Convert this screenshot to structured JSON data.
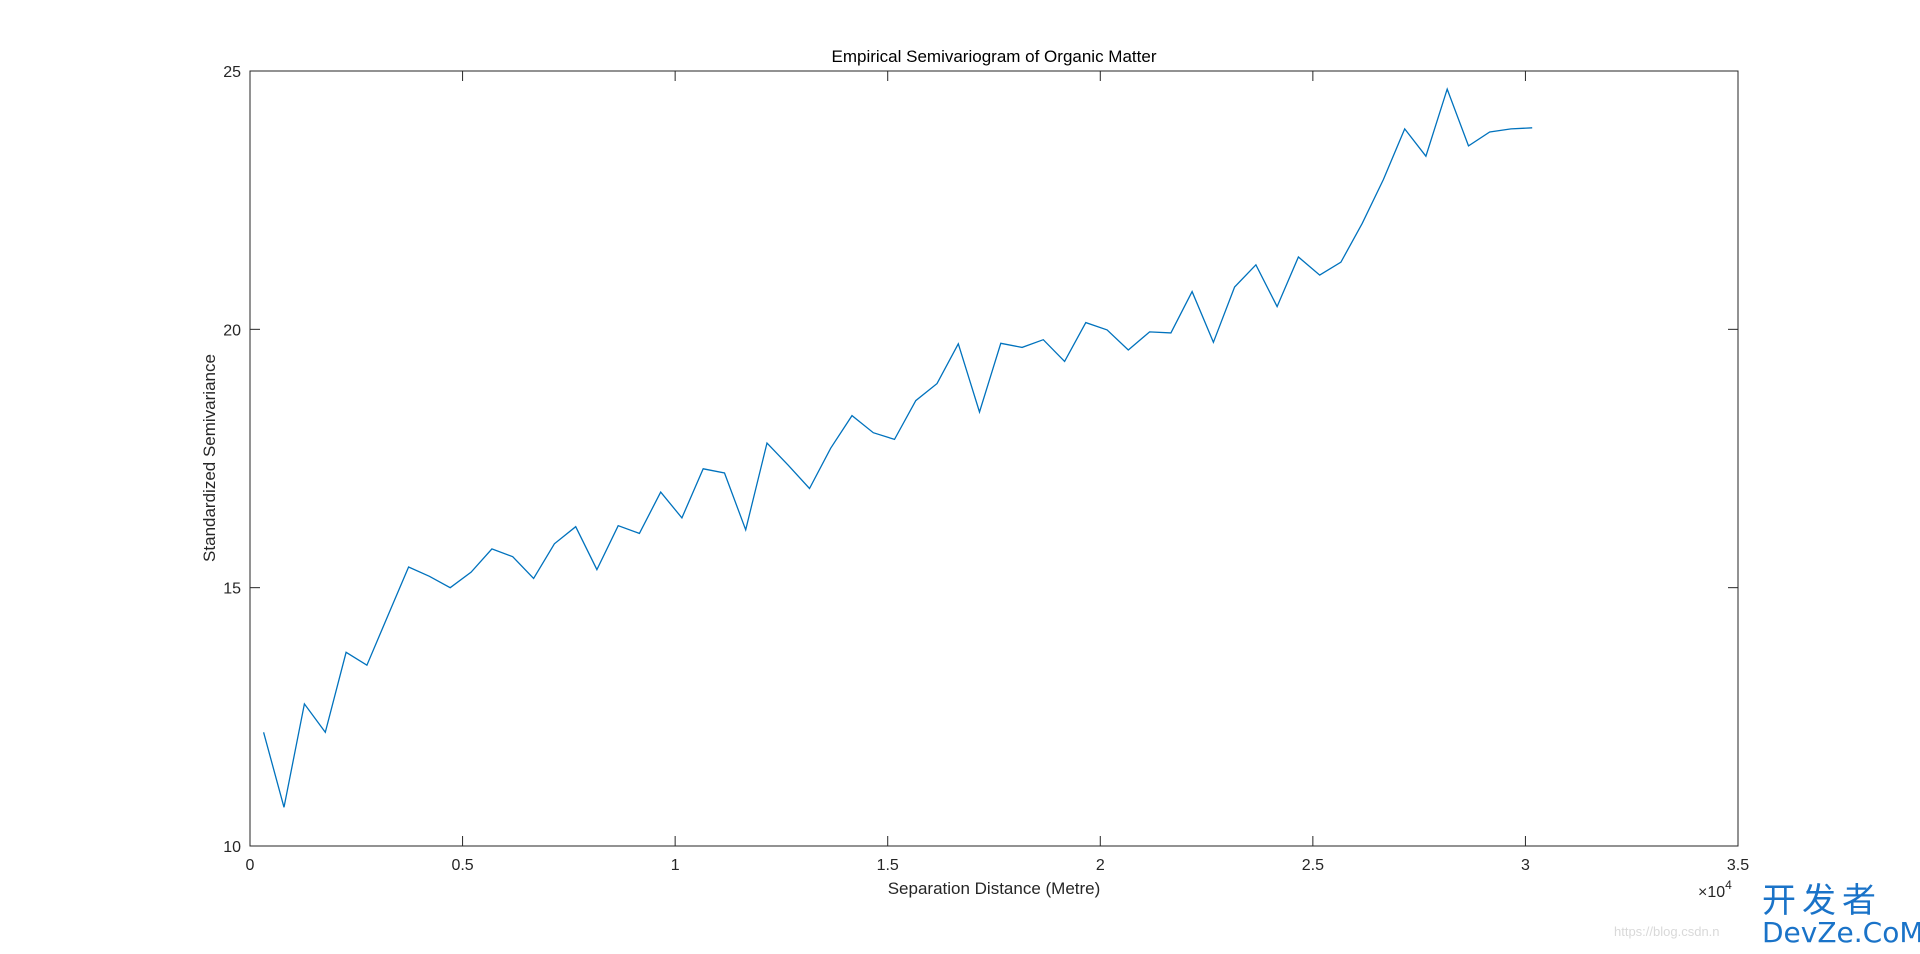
{
  "chart_data": {
    "type": "line",
    "title": "Empirical Semivariogram of Organic Matter",
    "xlabel": "Separation Distance (Metre)",
    "ylabel": "Standardized Semivariance",
    "x_exponent_label": "×10",
    "x_exponent_power": "4",
    "xlim": [
      0,
      35000
    ],
    "ylim": [
      10,
      25
    ],
    "xticks": [
      0,
      5000,
      10000,
      15000,
      20000,
      25000,
      30000,
      35000
    ],
    "xtick_labels": [
      "0",
      "0.5",
      "1",
      "1.5",
      "2",
      "2.5",
      "3",
      "3.5"
    ],
    "yticks": [
      10,
      15,
      20,
      25
    ],
    "ytick_labels": [
      "10",
      "15",
      "20",
      "25"
    ],
    "grid": false,
    "box": true,
    "series": [
      {
        "color": "#0072BD",
        "x": [
          320,
          800,
          1280,
          1770,
          2260,
          2750,
          3240,
          3730,
          4220,
          4710,
          5200,
          5690,
          6180,
          6670,
          7160,
          7660,
          8160,
          8660,
          9160,
          9660,
          10160,
          10660,
          11160,
          11660,
          12160,
          12660,
          13160,
          13660,
          14160,
          14660,
          15160,
          15660,
          16160,
          16660,
          17160,
          17660,
          18160,
          18660,
          19160,
          19660,
          20160,
          20660,
          21160,
          21660,
          22160,
          22660,
          23160,
          23660,
          24160,
          24660,
          25160,
          25660,
          26160,
          26660,
          27160,
          27660,
          28160,
          28660,
          29160,
          29660,
          30160
        ],
        "y": [
          12.2,
          10.75,
          12.75,
          12.2,
          13.75,
          13.5,
          14.45,
          15.4,
          15.22,
          15.0,
          15.3,
          15.75,
          15.6,
          15.18,
          15.85,
          16.18,
          15.35,
          16.2,
          16.05,
          16.85,
          16.35,
          17.3,
          17.22,
          16.12,
          17.8,
          17.37,
          16.92,
          17.7,
          18.33,
          18.0,
          17.87,
          18.62,
          18.95,
          19.72,
          18.4,
          19.73,
          19.65,
          19.8,
          19.38,
          20.13,
          19.99,
          19.6,
          19.95,
          19.93,
          20.73,
          19.75,
          20.82,
          21.25,
          20.44,
          21.4,
          21.05,
          21.3,
          22.05,
          22.9,
          23.88,
          23.35,
          24.65,
          23.55,
          23.82,
          23.88,
          23.9
        ]
      }
    ]
  },
  "watermark": {
    "url_text": "https://blog.csdn.n",
    "site_cn": "开发者",
    "site_en": "DevZe.CoM",
    "color": "#1a73c8"
  }
}
